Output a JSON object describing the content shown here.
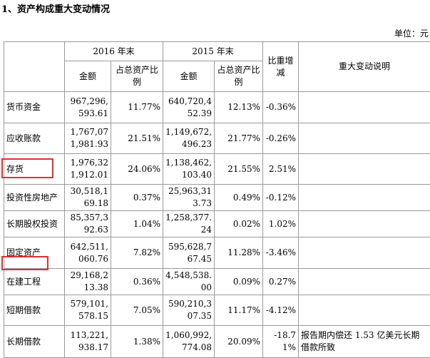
{
  "header": {
    "title": "1、资产构成重大变动情况",
    "unit": "单位：元"
  },
  "table": {
    "columns": {
      "year_2016": "2016 年末",
      "year_2015": "2015 年末",
      "change": "比重增减",
      "note": "重大变动说明",
      "amount_2016": "金额",
      "ratio_2016": "占总资产比例",
      "amount_2015": "金额",
      "ratio_2015": "占总资产比例"
    },
    "rows": [
      [
        "货币资金",
        "967,296,593.61",
        "11.77%",
        "640,720,452.39",
        "12.13%",
        "-0.36%"
      ],
      [
        "应收账款",
        "1,767,071,981.93",
        "21.51%",
        "1,149,672,496.23",
        "21.77%",
        "-0.26%"
      ],
      [
        "存货",
        "1,976,321,912.01",
        "24.06%",
        "1,138,462,103.40",
        "21.55%",
        "2.51%"
      ],
      [
        "投资性房地产",
        "30,518,169.18",
        "0.37%",
        "25,963,313.73",
        "0.49%",
        "-0.12%"
      ],
      [
        "长期股权投资",
        "85,357,392.63",
        "1.04%",
        "1,258,377.24",
        "0.02%",
        "1.02%"
      ],
      [
        "固定资产",
        "642,511,060.76",
        "7.82%",
        "595,628,767.45",
        "11.28%",
        "-3.46%"
      ],
      [
        "在建工程",
        "29,168,213.38",
        "0.36%",
        "4,548,538.00",
        "0.09%",
        "0.27%"
      ],
      [
        "短期借款",
        "579,101,578.15",
        "7.05%",
        "590,210,307.35",
        "11.17%",
        "-4.12%"
      ],
      [
        "长期借款",
        "113,221,938.17",
        "1.38%",
        "1,060,992,774.08",
        "20.09%",
        "-18.71%",
        "报告期内偿还 1.53 亿美元长期借款所致"
      ]
    ]
  }
}
